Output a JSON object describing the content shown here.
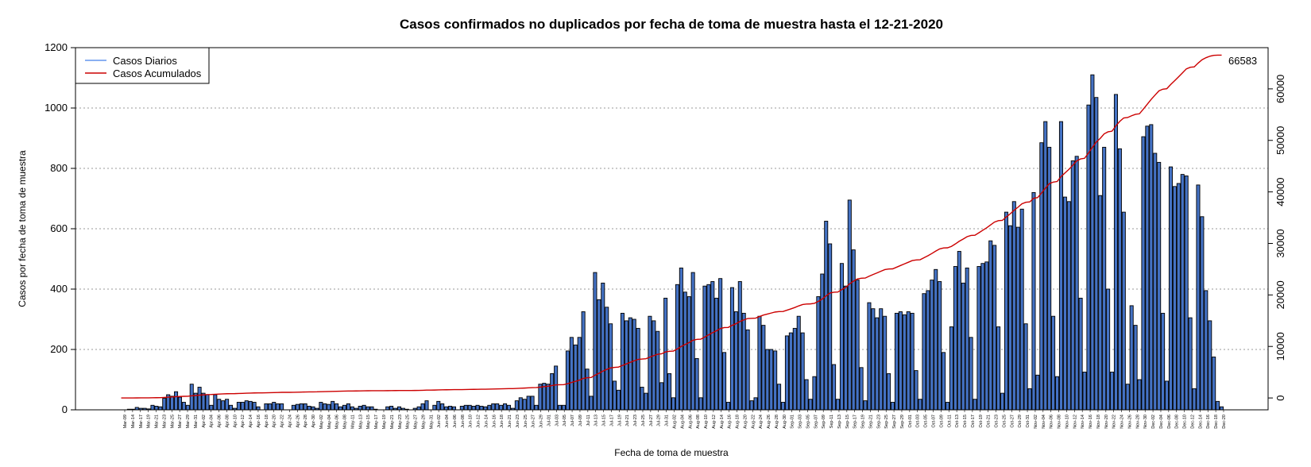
{
  "chart_data": {
    "type": "bar",
    "title": "Casos confirmados no duplicados por fecha de toma de muestra hasta el 12-21-2020",
    "xlabel": "Fecha de toma de muestra",
    "ylabel": "Casos por fecha de toma de muestra",
    "ylim": [
      0,
      1200
    ],
    "yticks": [
      0,
      200,
      400,
      600,
      800,
      1000,
      1200
    ],
    "y2lim": [
      -2300,
      68000
    ],
    "y2ticks": [
      0,
      10000,
      20000,
      30000,
      40000,
      50000,
      60000
    ],
    "grid": "horizontal dotted",
    "legend_position": "top-left",
    "start_date": "2020-03-09",
    "end_date": "2020-12-20",
    "x_tick_labels": [
      "Mar-09",
      "Mar-14",
      "Mar-17",
      "Mar-19",
      "Mar-21",
      "Mar-23",
      "Mar-25",
      "Mar-27",
      "Mar-29",
      "Mar-31",
      "Apr-02",
      "Apr-04",
      "Apr-06",
      "Apr-08",
      "Apr-10",
      "Apr-12",
      "Apr-14",
      "Apr-16",
      "Apr-18",
      "Apr-20",
      "Apr-22",
      "Apr-24",
      "Apr-26",
      "Apr-28",
      "Apr-30",
      "May-02",
      "May-04",
      "May-06",
      "May-08",
      "May-11",
      "May-13",
      "May-15",
      "May-17",
      "May-19",
      "May-21",
      "May-23",
      "May-25",
      "May-27",
      "May-29",
      "May-31",
      "Jun-02",
      "Jun-04",
      "Jun-06",
      "Jun-08",
      "Jun-10",
      "Jun-12",
      "Jun-14",
      "Jun-16",
      "Jun-18",
      "Jun-21",
      "Jun-23",
      "Jun-25",
      "Jun-27",
      "Jun-29",
      "Jul-01",
      "Jul-03",
      "Jul-05",
      "Jul-07",
      "Jul-09",
      "Jul-11",
      "Jul-13",
      "Jul-15",
      "Jul-17",
      "Jul-19",
      "Jul-21",
      "Jul-23",
      "Jul-25",
      "Jul-27",
      "Jul-29",
      "Jul-31",
      "Aug-02",
      "Aug-04",
      "Aug-06",
      "Aug-08",
      "Aug-10",
      "Aug-12",
      "Aug-14",
      "Aug-16",
      "Aug-18",
      "Aug-20",
      "Aug-22",
      "Aug-24",
      "Aug-26",
      "Aug-28",
      "Aug-30",
      "Sep-01",
      "Sep-03",
      "Sep-05",
      "Sep-07",
      "Sep-09",
      "Sep-11",
      "Sep-13",
      "Sep-15",
      "Sep-17",
      "Sep-19",
      "Sep-21",
      "Sep-23",
      "Sep-25",
      "Sep-27",
      "Sep-29",
      "Oct-01",
      "Oct-03",
      "Oct-05",
      "Oct-07",
      "Oct-09",
      "Oct-11",
      "Oct-13",
      "Oct-15",
      "Oct-17",
      "Oct-19",
      "Oct-21",
      "Oct-23",
      "Oct-25",
      "Oct-27",
      "Oct-29",
      "Oct-31",
      "Nov-02",
      "Nov-04",
      "Nov-06",
      "Nov-08",
      "Nov-10",
      "Nov-12",
      "Nov-14",
      "Nov-16",
      "Nov-18",
      "Nov-20",
      "Nov-22",
      "Nov-24",
      "Nov-26",
      "Nov-28",
      "Nov-30",
      "Dec-02",
      "Dec-04",
      "Dec-06",
      "Dec-08",
      "Dec-10",
      "Dec-12",
      "Dec-14",
      "Dec-16",
      "Dec-18",
      "Dec-20"
    ],
    "series": [
      {
        "name": "Casos Diarios",
        "axis": "left",
        "color": "#4472C4",
        "legend_color": "#6495ED",
        "values": [
          0,
          2,
          2,
          8,
          5,
          5,
          3,
          15,
          12,
          10,
          38,
          50,
          45,
          60,
          42,
          25,
          15,
          85,
          55,
          75,
          55,
          50,
          15,
          50,
          35,
          30,
          35,
          15,
          5,
          25,
          25,
          30,
          28,
          25,
          10,
          0,
          20,
          20,
          25,
          20,
          20,
          0,
          0,
          15,
          18,
          20,
          20,
          12,
          10,
          5,
          25,
          20,
          18,
          28,
          20,
          10,
          15,
          20,
          10,
          5,
          12,
          15,
          10,
          10,
          2,
          0,
          0,
          10,
          12,
          5,
          10,
          5,
          2,
          0,
          5,
          10,
          20,
          30,
          0,
          15,
          28,
          20,
          10,
          12,
          10,
          0,
          12,
          15,
          15,
          12,
          15,
          12,
          10,
          15,
          20,
          20,
          15,
          20,
          15,
          5,
          30,
          40,
          35,
          45,
          45,
          15,
          85,
          88,
          85,
          120,
          145,
          15,
          15,
          195,
          240,
          215,
          240,
          325,
          135,
          45,
          455,
          365,
          420,
          340,
          285,
          95,
          65,
          320,
          295,
          305,
          300,
          270,
          75,
          55,
          310,
          295,
          260,
          90,
          370,
          120,
          40,
          415,
          470,
          390,
          375,
          455,
          170,
          40,
          410,
          415,
          425,
          370,
          435,
          190,
          25,
          405,
          325,
          425,
          320,
          265,
          30,
          40,
          310,
          280,
          200,
          200,
          195,
          85,
          25,
          245,
          255,
          270,
          310,
          255,
          100,
          35,
          110,
          375,
          450,
          625,
          550,
          150,
          35,
          485,
          410,
          695,
          530,
          430,
          140,
          30,
          355,
          335,
          305,
          335,
          310,
          120,
          25,
          320,
          325,
          315,
          325,
          320,
          130,
          35,
          385,
          395,
          430,
          465,
          425,
          190,
          25,
          275,
          475,
          525,
          420,
          470,
          240,
          35,
          475,
          485,
          490,
          560,
          545,
          275,
          55,
          655,
          610,
          690,
          605,
          665,
          285,
          70,
          720,
          115,
          885,
          955,
          870,
          310,
          110,
          955,
          705,
          690,
          825,
          840,
          370,
          125,
          1010,
          1110,
          1035,
          710,
          870,
          400,
          125,
          1045,
          865,
          655,
          85,
          345,
          280,
          100,
          905,
          940,
          945,
          850,
          820,
          320,
          95,
          805,
          740,
          750,
          780,
          775,
          305,
          70,
          745,
          640,
          395,
          295,
          175,
          28,
          10
        ]
      },
      {
        "name": "Casos Acumulados",
        "axis": "right",
        "color": "#CC0000"
      }
    ],
    "annotations": [
      {
        "text": "66583",
        "series": "Casos Acumulados",
        "position": "end"
      }
    ]
  }
}
